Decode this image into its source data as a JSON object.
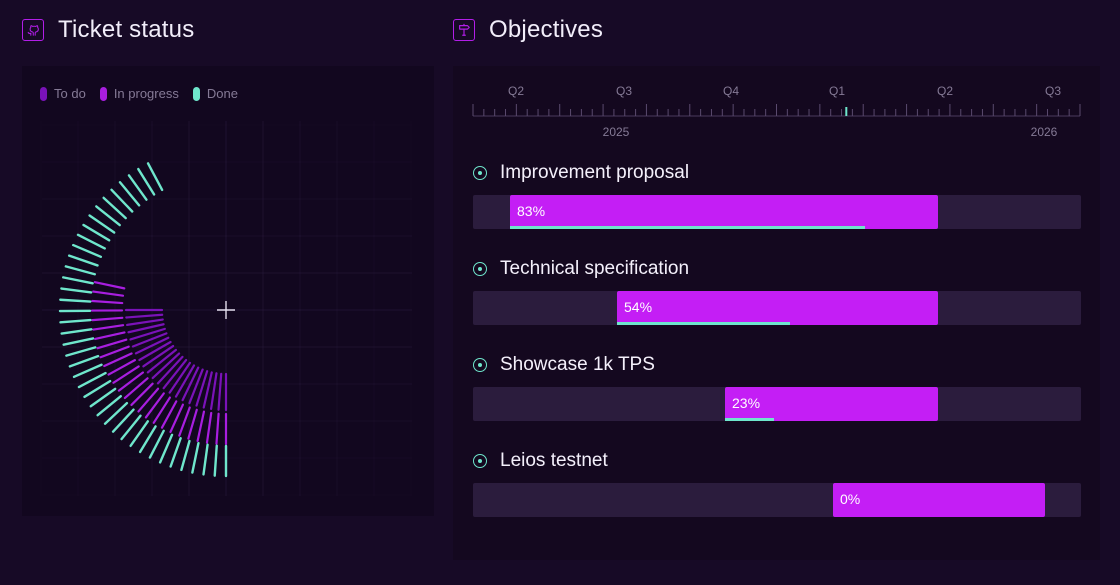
{
  "ticket_status": {
    "title": "Ticket status",
    "icon": "github-icon",
    "legend": [
      {
        "label": "To do",
        "color": "#7a12b8"
      },
      {
        "label": "In progress",
        "color": "#a81ee0"
      },
      {
        "label": "Done",
        "color": "#6fe6cc"
      }
    ]
  },
  "objectives": {
    "title": "Objectives",
    "icon": "signpost-icon",
    "timeline": {
      "quarters": [
        "Q2",
        "Q3",
        "Q4",
        "Q1",
        "Q2",
        "Q3"
      ],
      "years": [
        "2025",
        "2026"
      ]
    },
    "items": [
      {
        "name": "Improvement proposal",
        "label": "83%",
        "progress": 0.83,
        "start": "Q2 2024",
        "end": "Q1 2025"
      },
      {
        "name": "Technical specification",
        "label": "54%",
        "progress": 0.54,
        "start": "Q3 2024",
        "end": "Q1 2025"
      },
      {
        "name": "Showcase 1k TPS",
        "label": "23%",
        "progress": 0.23,
        "start": "Q4 2024",
        "end": "Q1 2025"
      },
      {
        "name": "Leios testnet",
        "label": "0%",
        "progress": 0.0,
        "start": "Q1 2025",
        "end": "Q2 2025"
      }
    ]
  },
  "colors": {
    "background": "#170a26",
    "accent_magenta": "#c41ef5",
    "accent_teal": "#6fe6cc"
  }
}
